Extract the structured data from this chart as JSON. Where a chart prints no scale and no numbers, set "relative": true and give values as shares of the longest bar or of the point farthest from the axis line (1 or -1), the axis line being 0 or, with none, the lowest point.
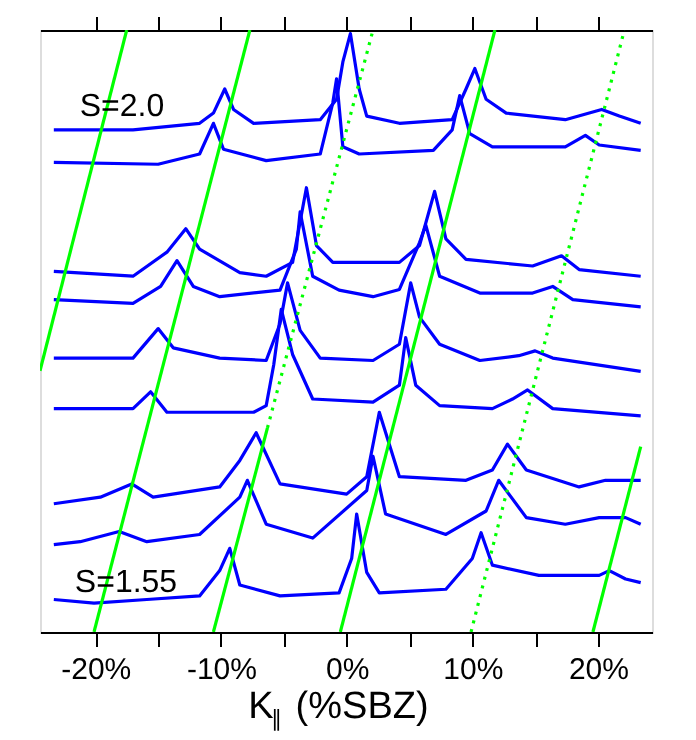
{
  "chart_data": {
    "type": "line",
    "relative": true,
    "xlabel": "K$_{∥}$ (%SBZ)",
    "xlim": [
      -24.4,
      24.3
    ],
    "xticks": [
      {
        "value": -20,
        "label": "-20%"
      },
      {
        "value": -15,
        "label": null
      },
      {
        "value": -10,
        "label": "-10%"
      },
      {
        "value": -5,
        "label": null
      },
      {
        "value": 0,
        "label": "0%"
      },
      {
        "value": 5,
        "label": null
      },
      {
        "value": 10,
        "label": "10%"
      },
      {
        "value": 15,
        "label": null
      },
      {
        "value": 20,
        "label": "20%"
      }
    ],
    "tick_labels": "x",
    "grid": false,
    "marker": "none",
    "annotations": [
      "S=2.0",
      "S=1.55"
    ],
    "series": [
      {
        "color": "#0000ff",
        "x": [
          -23.3,
          -17.0,
          -11.7,
          -10.6,
          -9.7,
          -9.0,
          -7.4,
          -2.1,
          -0.8,
          -0.3,
          0.3,
          1.0,
          1.6,
          4.2,
          8.4,
          9.5,
          10.2,
          11.1,
          12.7,
          17.4,
          20.3,
          21.7,
          23.4
        ],
        "values": [
          0.834,
          0.834,
          0.845,
          0.862,
          0.902,
          0.868,
          0.845,
          0.851,
          0.885,
          0.947,
          0.994,
          0.902,
          0.857,
          0.845,
          0.851,
          0.902,
          0.936,
          0.885,
          0.862,
          0.851,
          0.868,
          0.857,
          0.845
        ]
      },
      {
        "color": "#0000ff",
        "x": [
          -23.3,
          -15.0,
          -11.7,
          -10.6,
          -9.8,
          -6.4,
          -2.1,
          -1.1,
          -0.8,
          -0.3,
          1.0,
          6.9,
          8.4,
          9.0,
          9.8,
          11.6,
          17.4,
          19.0,
          20.1,
          23.4
        ],
        "values": [
          0.78,
          0.777,
          0.794,
          0.845,
          0.802,
          0.783,
          0.794,
          0.879,
          0.919,
          0.806,
          0.794,
          0.8,
          0.834,
          0.891,
          0.828,
          0.806,
          0.806,
          0.825,
          0.809,
          0.8
        ]
      },
      {
        "color": "#0000ff",
        "x": [
          -23.3,
          -17.0,
          -14.3,
          -12.8,
          -11.7,
          -8.5,
          -6.4,
          -4.3,
          -3.2,
          -2.4,
          -1.1,
          4.2,
          5.8,
          7.0,
          7.9,
          9.5,
          14.8,
          17.1,
          18.5,
          23.4
        ],
        "values": [
          0.599,
          0.591,
          0.631,
          0.67,
          0.636,
          0.597,
          0.591,
          0.614,
          0.738,
          0.642,
          0.614,
          0.614,
          0.642,
          0.732,
          0.653,
          0.619,
          0.608,
          0.625,
          0.602,
          0.591
        ]
      },
      {
        "color": "#0000ff",
        "x": [
          -23.3,
          -17.0,
          -14.8,
          -13.5,
          -12.2,
          -10.1,
          -5.3,
          -4.0,
          -3.7,
          -2.7,
          -0.6,
          2.1,
          4.2,
          5.8,
          6.3,
          7.4,
          10.6,
          14.8,
          16.4,
          18.0,
          23.4
        ],
        "values": [
          0.552,
          0.546,
          0.574,
          0.617,
          0.574,
          0.557,
          0.568,
          0.636,
          0.698,
          0.591,
          0.568,
          0.557,
          0.569,
          0.647,
          0.676,
          0.591,
          0.563,
          0.563,
          0.574,
          0.552,
          0.54
        ]
      },
      {
        "color": "#0000ff",
        "x": [
          -23.3,
          -17.0,
          -15.0,
          -13.8,
          -10.1,
          -6.4,
          -5.3,
          -4.7,
          -3.7,
          -2.1,
          2.1,
          4.2,
          5.1,
          5.8,
          7.4,
          10.6,
          13.7,
          15.0,
          16.4,
          23.4
        ],
        "values": [
          0.455,
          0.455,
          0.504,
          0.472,
          0.455,
          0.451,
          0.512,
          0.58,
          0.501,
          0.455,
          0.451,
          0.478,
          0.58,
          0.523,
          0.478,
          0.451,
          0.459,
          0.467,
          0.455,
          0.433
        ]
      },
      {
        "color": "#0000ff",
        "x": [
          -23.3,
          -17.0,
          -15.6,
          -14.3,
          -7.4,
          -6.4,
          -5.8,
          -5.2,
          -4.3,
          -2.7,
          2.1,
          4.2,
          4.7,
          5.5,
          7.4,
          11.6,
          13.2,
          14.4,
          16.4,
          23.4
        ],
        "values": [
          0.371,
          0.371,
          0.399,
          0.365,
          0.365,
          0.376,
          0.444,
          0.536,
          0.461,
          0.387,
          0.382,
          0.41,
          0.489,
          0.41,
          0.376,
          0.371,
          0.387,
          0.402,
          0.371,
          0.359
        ]
      },
      {
        "color": "#0000ff",
        "x": [
          -23.3,
          -19.6,
          -17.1,
          -15.4,
          -10.1,
          -8.5,
          -7.2,
          -5.3,
          0.0,
          1.6,
          2.6,
          4.2,
          9.5,
          11.6,
          12.8,
          14.3,
          18.5,
          20.6,
          23.4
        ],
        "values": [
          0.213,
          0.224,
          0.246,
          0.224,
          0.241,
          0.285,
          0.331,
          0.246,
          0.229,
          0.258,
          0.365,
          0.258,
          0.252,
          0.269,
          0.312,
          0.269,
          0.241,
          0.252,
          0.252
        ]
      },
      {
        "color": "#0000ff",
        "x": [
          -23.3,
          -21.2,
          -18.1,
          -15.9,
          -11.7,
          -8.5,
          -7.9,
          -6.4,
          -2.7,
          1.6,
          2.1,
          3.1,
          7.9,
          11.1,
          12.1,
          14.3,
          17.4,
          20.1,
          22.2,
          23.4
        ],
        "values": [
          0.145,
          0.15,
          0.167,
          0.15,
          0.162,
          0.224,
          0.252,
          0.179,
          0.156,
          0.235,
          0.292,
          0.196,
          0.162,
          0.201,
          0.252,
          0.19,
          0.179,
          0.19,
          0.19,
          0.179
        ]
      },
      {
        "color": "#0000ff",
        "x": [
          -23.3,
          -20.1,
          -15.9,
          -11.7,
          -10.1,
          -9.3,
          -8.5,
          -5.3,
          -0.6,
          0.4,
          0.8,
          1.6,
          2.6,
          7.9,
          10.0,
          10.7,
          11.6,
          15.3,
          20.1,
          20.9,
          22.2,
          23.4
        ],
        "values": [
          0.054,
          0.048,
          0.054,
          0.06,
          0.102,
          0.139,
          0.078,
          0.06,
          0.065,
          0.122,
          0.196,
          0.099,
          0.065,
          0.071,
          0.122,
          0.165,
          0.111,
          0.094,
          0.094,
          0.102,
          0.088,
          0.082
        ]
      },
      {
        "color": "#00ff00",
        "line_style": "solid",
        "x": [
          -24.4,
          -17.5
        ],
        "values": [
          0.434,
          1.0
        ]
      },
      {
        "color": "#00ff00",
        "line_style": "solid",
        "x": [
          -20.1,
          -7.7
        ],
        "values": [
          0,
          1.0
        ]
      },
      {
        "color": "#00ff00",
        "line_style": "solid",
        "x": [
          -10.6,
          -6.3
        ],
        "values": [
          0,
          0.339
        ]
      },
      {
        "color": "#00ff00",
        "line_style": "dotted",
        "x": [
          -6.3,
          2.1
        ],
        "values": [
          0.339,
          1.0
        ]
      },
      {
        "color": "#00ff00",
        "line_style": "solid",
        "x": [
          -0.5,
          11.8
        ],
        "values": [
          0,
          1.0
        ]
      },
      {
        "color": "#00ff00",
        "line_style": "dotted",
        "x": [
          9.9,
          22.1
        ],
        "values": [
          0,
          1.0
        ]
      },
      {
        "color": "#00ff00",
        "line_style": "solid",
        "x": [
          19.6,
          23.4
        ],
        "values": [
          0,
          0.308
        ]
      }
    ]
  }
}
